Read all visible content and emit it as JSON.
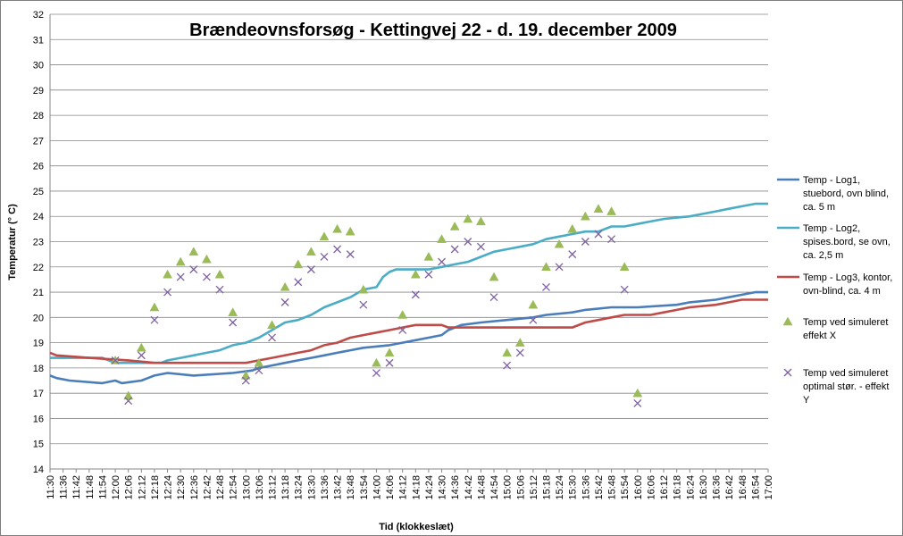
{
  "chart_data": {
    "type": "line",
    "title": "Brændeovnsforsøg  - Kettingvej 22 - d. 19. december 2009",
    "xlabel": "Tid (klokkeslæt)",
    "ylabel": "Temperatur (° C)",
    "ylim": [
      14,
      32
    ],
    "yticks": [
      14,
      15,
      16,
      17,
      18,
      19,
      20,
      21,
      22,
      23,
      24,
      25,
      26,
      27,
      28,
      29,
      30,
      31,
      32
    ],
    "xlim": [
      "11:30",
      "17:00"
    ],
    "x_tick_interval_minutes": 6,
    "grid": "horizontal",
    "legend_position": "right",
    "series": [
      {
        "name": "Temp - Log1, stuebord, ovn blind, ca. 5 m",
        "kind": "line",
        "color": "#4a7ebb",
        "points": [
          [
            "11:30",
            17.7
          ],
          [
            "11:33",
            17.6
          ],
          [
            "11:39",
            17.5
          ],
          [
            "11:54",
            17.4
          ],
          [
            "12:00",
            17.5
          ],
          [
            "12:03",
            17.4
          ],
          [
            "12:12",
            17.5
          ],
          [
            "12:15",
            17.6
          ],
          [
            "12:18",
            17.7
          ],
          [
            "12:24",
            17.8
          ],
          [
            "12:36",
            17.7
          ],
          [
            "12:54",
            17.8
          ],
          [
            "13:03",
            17.9
          ],
          [
            "13:06",
            18.0
          ],
          [
            "13:12",
            18.1
          ],
          [
            "13:18",
            18.2
          ],
          [
            "13:24",
            18.3
          ],
          [
            "13:30",
            18.4
          ],
          [
            "13:36",
            18.5
          ],
          [
            "13:42",
            18.6
          ],
          [
            "13:48",
            18.7
          ],
          [
            "13:54",
            18.8
          ],
          [
            "14:06",
            18.9
          ],
          [
            "14:12",
            19.0
          ],
          [
            "14:18",
            19.1
          ],
          [
            "14:24",
            19.2
          ],
          [
            "14:30",
            19.3
          ],
          [
            "14:33",
            19.5
          ],
          [
            "14:39",
            19.7
          ],
          [
            "14:48",
            19.8
          ],
          [
            "15:00",
            19.9
          ],
          [
            "15:12",
            20.0
          ],
          [
            "15:18",
            20.1
          ],
          [
            "15:30",
            20.2
          ],
          [
            "15:36",
            20.3
          ],
          [
            "15:48",
            20.4
          ],
          [
            "16:00",
            20.4
          ],
          [
            "16:18",
            20.5
          ],
          [
            "16:24",
            20.6
          ],
          [
            "16:36",
            20.7
          ],
          [
            "16:42",
            20.8
          ],
          [
            "16:48",
            20.9
          ],
          [
            "16:54",
            21.0
          ],
          [
            "17:00",
            21.0
          ]
        ]
      },
      {
        "name": "Temp - Log2, spises.bord, se ovn, ca. 2,5 m",
        "kind": "line",
        "color": "#4bacc6",
        "points": [
          [
            "11:30",
            18.4
          ],
          [
            "11:54",
            18.4
          ],
          [
            "11:57",
            18.3
          ],
          [
            "12:00",
            18.2
          ],
          [
            "12:21",
            18.2
          ],
          [
            "12:24",
            18.3
          ],
          [
            "12:30",
            18.4
          ],
          [
            "12:36",
            18.5
          ],
          [
            "12:42",
            18.6
          ],
          [
            "12:48",
            18.7
          ],
          [
            "12:54",
            18.9
          ],
          [
            "13:00",
            19.0
          ],
          [
            "13:06",
            19.2
          ],
          [
            "13:12",
            19.5
          ],
          [
            "13:18",
            19.8
          ],
          [
            "13:24",
            19.9
          ],
          [
            "13:30",
            20.1
          ],
          [
            "13:36",
            20.4
          ],
          [
            "13:42",
            20.6
          ],
          [
            "13:48",
            20.8
          ],
          [
            "13:54",
            21.1
          ],
          [
            "14:00",
            21.2
          ],
          [
            "14:03",
            21.6
          ],
          [
            "14:06",
            21.8
          ],
          [
            "14:09",
            21.9
          ],
          [
            "14:24",
            21.9
          ],
          [
            "14:30",
            22.0
          ],
          [
            "14:36",
            22.1
          ],
          [
            "14:42",
            22.2
          ],
          [
            "14:48",
            22.4
          ],
          [
            "14:54",
            22.6
          ],
          [
            "15:00",
            22.7
          ],
          [
            "15:06",
            22.8
          ],
          [
            "15:12",
            22.9
          ],
          [
            "15:18",
            23.1
          ],
          [
            "15:24",
            23.2
          ],
          [
            "15:30",
            23.3
          ],
          [
            "15:36",
            23.4
          ],
          [
            "15:42",
            23.4
          ],
          [
            "15:48",
            23.6
          ],
          [
            "15:54",
            23.6
          ],
          [
            "16:00",
            23.7
          ],
          [
            "16:06",
            23.8
          ],
          [
            "16:12",
            23.9
          ],
          [
            "16:24",
            24.0
          ],
          [
            "16:30",
            24.1
          ],
          [
            "16:36",
            24.2
          ],
          [
            "16:42",
            24.3
          ],
          [
            "16:48",
            24.4
          ],
          [
            "16:54",
            24.5
          ],
          [
            "17:00",
            24.5
          ]
        ]
      },
      {
        "name": "Temp - Log3, kontor, ovn-blind, ca. 4 m",
        "kind": "line",
        "color": "#be4b48",
        "points": [
          [
            "11:30",
            18.6
          ],
          [
            "11:33",
            18.5
          ],
          [
            "11:48",
            18.4
          ],
          [
            "12:06",
            18.3
          ],
          [
            "12:18",
            18.2
          ],
          [
            "13:00",
            18.2
          ],
          [
            "13:06",
            18.3
          ],
          [
            "13:12",
            18.4
          ],
          [
            "13:24",
            18.6
          ],
          [
            "13:30",
            18.7
          ],
          [
            "13:36",
            18.9
          ],
          [
            "13:42",
            19.0
          ],
          [
            "13:48",
            19.2
          ],
          [
            "13:54",
            19.3
          ],
          [
            "14:00",
            19.4
          ],
          [
            "14:06",
            19.5
          ],
          [
            "14:12",
            19.6
          ],
          [
            "14:18",
            19.7
          ],
          [
            "14:30",
            19.7
          ],
          [
            "14:33",
            19.6
          ],
          [
            "15:00",
            19.6
          ],
          [
            "15:30",
            19.6
          ],
          [
            "15:36",
            19.8
          ],
          [
            "15:42",
            19.9
          ],
          [
            "15:48",
            20.0
          ],
          [
            "15:54",
            20.1
          ],
          [
            "16:06",
            20.1
          ],
          [
            "16:12",
            20.2
          ],
          [
            "16:18",
            20.3
          ],
          [
            "16:24",
            20.4
          ],
          [
            "16:36",
            20.5
          ],
          [
            "16:42",
            20.6
          ],
          [
            "16:48",
            20.7
          ],
          [
            "17:00",
            20.7
          ]
        ]
      },
      {
        "name": "Temp ved simuleret effekt X",
        "kind": "marker-triangle",
        "color": "#9bbb59",
        "points": [
          [
            "12:00",
            18.3
          ],
          [
            "12:06",
            16.9
          ],
          [
            "12:12",
            18.8
          ],
          [
            "12:18",
            20.4
          ],
          [
            "12:24",
            21.7
          ],
          [
            "12:30",
            22.2
          ],
          [
            "12:36",
            22.6
          ],
          [
            "12:42",
            22.3
          ],
          [
            "12:48",
            21.7
          ],
          [
            "12:54",
            20.2
          ],
          [
            "13:00",
            17.7
          ],
          [
            "13:06",
            18.2
          ],
          [
            "13:12",
            19.7
          ],
          [
            "13:18",
            21.2
          ],
          [
            "13:24",
            22.1
          ],
          [
            "13:30",
            22.6
          ],
          [
            "13:36",
            23.2
          ],
          [
            "13:42",
            23.5
          ],
          [
            "13:48",
            23.4
          ],
          [
            "13:54",
            21.1
          ],
          [
            "14:00",
            18.2
          ],
          [
            "14:06",
            18.6
          ],
          [
            "14:12",
            20.1
          ],
          [
            "14:18",
            21.7
          ],
          [
            "14:24",
            22.4
          ],
          [
            "14:30",
            23.1
          ],
          [
            "14:36",
            23.6
          ],
          [
            "14:42",
            23.9
          ],
          [
            "14:48",
            23.8
          ],
          [
            "14:54",
            21.6
          ],
          [
            "15:00",
            18.6
          ],
          [
            "15:06",
            19.0
          ],
          [
            "15:12",
            20.5
          ],
          [
            "15:18",
            22.0
          ],
          [
            "15:24",
            22.9
          ],
          [
            "15:30",
            23.5
          ],
          [
            "15:36",
            24.0
          ],
          [
            "15:42",
            24.3
          ],
          [
            "15:48",
            24.2
          ],
          [
            "15:54",
            22.0
          ],
          [
            "16:00",
            17.0
          ]
        ]
      },
      {
        "name": "Temp ved simuleret optimal stør. - effekt Y",
        "kind": "marker-x",
        "color": "#7d60a0",
        "points": [
          [
            "12:00",
            18.3
          ],
          [
            "12:06",
            16.7
          ],
          [
            "12:12",
            18.5
          ],
          [
            "12:18",
            19.9
          ],
          [
            "12:24",
            21.0
          ],
          [
            "12:30",
            21.6
          ],
          [
            "12:36",
            21.9
          ],
          [
            "12:42",
            21.6
          ],
          [
            "12:48",
            21.1
          ],
          [
            "12:54",
            19.8
          ],
          [
            "13:00",
            17.5
          ],
          [
            "13:06",
            17.9
          ],
          [
            "13:12",
            19.2
          ],
          [
            "13:18",
            20.6
          ],
          [
            "13:24",
            21.4
          ],
          [
            "13:30",
            21.9
          ],
          [
            "13:36",
            22.4
          ],
          [
            "13:42",
            22.7
          ],
          [
            "13:48",
            22.5
          ],
          [
            "13:54",
            20.5
          ],
          [
            "14:00",
            17.8
          ],
          [
            "14:06",
            18.2
          ],
          [
            "14:12",
            19.5
          ],
          [
            "14:18",
            20.9
          ],
          [
            "14:24",
            21.7
          ],
          [
            "14:30",
            22.2
          ],
          [
            "14:36",
            22.7
          ],
          [
            "14:42",
            23.0
          ],
          [
            "14:48",
            22.8
          ],
          [
            "14:54",
            20.8
          ],
          [
            "15:00",
            18.1
          ],
          [
            "15:06",
            18.6
          ],
          [
            "15:12",
            19.9
          ],
          [
            "15:18",
            21.2
          ],
          [
            "15:24",
            22.0
          ],
          [
            "15:30",
            22.5
          ],
          [
            "15:36",
            23.0
          ],
          [
            "15:42",
            23.3
          ],
          [
            "15:48",
            23.1
          ],
          [
            "15:54",
            21.1
          ],
          [
            "16:00",
            16.6
          ]
        ]
      }
    ],
    "legend": [
      {
        "lines": [
          "Temp - Log1,",
          "stuebord, ovn blind,",
          "ca. 5 m"
        ]
      },
      {
        "lines": [
          "Temp - Log2,",
          "spises.bord, se ovn,",
          "ca. 2,5 m"
        ]
      },
      {
        "lines": [
          "Temp - Log3, kontor,",
          "ovn-blind, ca. 4 m"
        ]
      },
      {
        "lines": [
          "Temp ved simuleret",
          "effekt X"
        ]
      },
      {
        "lines": [
          "Temp ved simuleret",
          "optimal stør. - effekt",
          "Y"
        ]
      }
    ]
  }
}
